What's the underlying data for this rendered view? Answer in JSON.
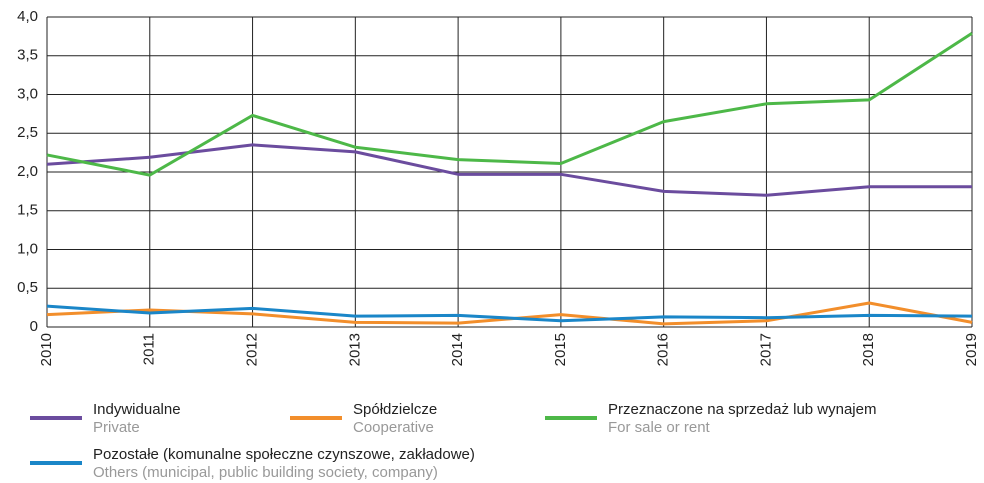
{
  "chart_data": {
    "type": "line",
    "x": [
      2010,
      2011,
      2012,
      2013,
      2014,
      2015,
      2016,
      2017,
      2018,
      2019
    ],
    "xlim": [
      2010,
      2019
    ],
    "xticks": [
      2010,
      2011,
      2012,
      2013,
      2014,
      2015,
      2016,
      2017,
      2018,
      2019
    ],
    "ylim": [
      0,
      4
    ],
    "yticks": [
      0,
      {
        "value": 0.5,
        "label": "0,5"
      },
      {
        "value": 1,
        "label": "1,0"
      },
      {
        "value": 1.5,
        "label": "1,5"
      },
      {
        "value": 2,
        "label": "2,0"
      },
      {
        "value": 2.5,
        "label": "2,5"
      },
      {
        "value": 3,
        "label": "3,0"
      },
      {
        "value": 3.5,
        "label": "3,5"
      },
      {
        "value": 4,
        "label": "4,0"
      }
    ],
    "grid": true,
    "series": [
      {
        "name": "Indywidualne",
        "name_en": "Private",
        "color": "#6b4c9e",
        "values": [
          2.1,
          2.19,
          2.35,
          2.26,
          1.97,
          1.97,
          1.75,
          1.7,
          1.81,
          1.81
        ]
      },
      {
        "name": "Spółdzielcze",
        "name_en": "Cooperative",
        "color": "#f28e2b",
        "values": [
          0.16,
          0.22,
          0.17,
          0.06,
          0.05,
          0.16,
          0.04,
          0.08,
          0.31,
          0.06
        ]
      },
      {
        "name": "Przeznaczone na sprzedaż lub wynajem",
        "name_en": "For sale or rent",
        "color": "#4db848",
        "values": [
          2.22,
          1.96,
          2.73,
          2.32,
          2.16,
          2.11,
          2.65,
          2.88,
          2.93,
          3.79
        ]
      },
      {
        "name": "Pozostałe (komunalne społeczne czynszowe, zakładowe)",
        "name_en": "Others (municipal, public building society, company)",
        "color": "#1a86c8",
        "values": [
          0.27,
          0.18,
          0.24,
          0.14,
          0.15,
          0.08,
          0.13,
          0.12,
          0.15,
          0.14
        ]
      }
    ]
  }
}
